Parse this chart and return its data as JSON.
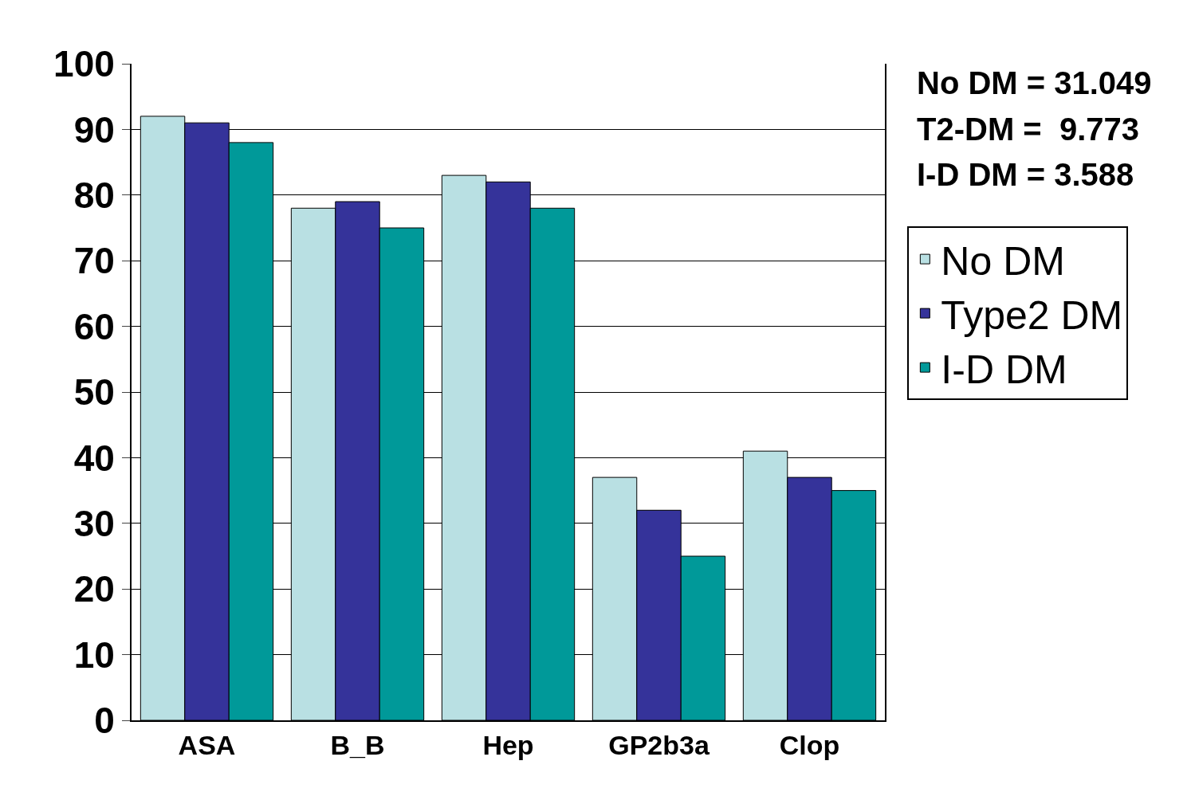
{
  "chart_data": {
    "type": "bar",
    "categories": [
      "ASA",
      "B_B",
      "Hep",
      "GP2b3a",
      "Clop"
    ],
    "series": [
      {
        "name": "No DM",
        "color": "#b9e0e3",
        "values": [
          92,
          78,
          83,
          37,
          41
        ]
      },
      {
        "name": "Type2 DM",
        "color": "#35339a",
        "values": [
          91,
          79,
          82,
          32,
          37
        ]
      },
      {
        "name": "I-D DM",
        "color": "#009999",
        "values": [
          88,
          75,
          78,
          25,
          35
        ]
      }
    ],
    "ylim": [
      0,
      100
    ],
    "yticks": [
      0,
      10,
      20,
      30,
      40,
      50,
      60,
      70,
      80,
      90,
      100
    ],
    "grid": "y",
    "legend": "right",
    "annotations": [
      "No DM = 31.049",
      "T2-DM =  9.773",
      "I-D DM = 3.588"
    ]
  }
}
